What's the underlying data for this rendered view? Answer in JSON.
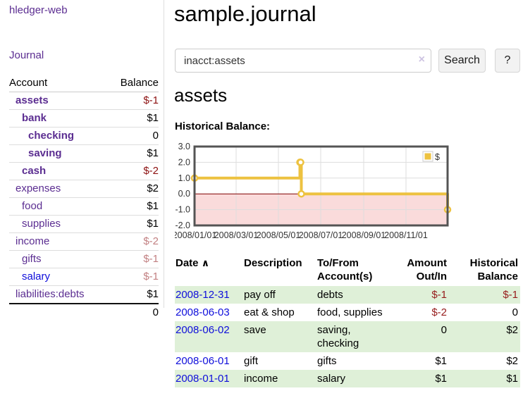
{
  "app": {
    "brand": "hledger-web",
    "nav_journal": "Journal"
  },
  "sidebar": {
    "col_account": "Account",
    "col_balance": "Balance",
    "accounts": [
      {
        "name": "assets",
        "level": 1,
        "bold": true,
        "balance": "$-1",
        "balance_class": "neg-strong",
        "unvisited": false
      },
      {
        "name": "bank",
        "level": 2,
        "bold": true,
        "balance": "$1",
        "balance_class": "",
        "unvisited": false
      },
      {
        "name": "checking",
        "level": 3,
        "bold": true,
        "balance": "0",
        "balance_class": "",
        "unvisited": false
      },
      {
        "name": "saving",
        "level": 3,
        "bold": true,
        "balance": "$1",
        "balance_class": "",
        "unvisited": false
      },
      {
        "name": "cash",
        "level": 2,
        "bold": true,
        "balance": "$-2",
        "balance_class": "neg-strong",
        "unvisited": false
      },
      {
        "name": "expenses",
        "level": 1,
        "bold": false,
        "balance": "$2",
        "balance_class": "",
        "unvisited": false
      },
      {
        "name": "food",
        "level": 2,
        "bold": false,
        "balance": "$1",
        "balance_class": "",
        "unvisited": false
      },
      {
        "name": "supplies",
        "level": 2,
        "bold": false,
        "balance": "$1",
        "balance_class": "",
        "unvisited": false
      },
      {
        "name": "income",
        "level": 1,
        "bold": false,
        "balance": "$-2",
        "balance_class": "neg-muted",
        "unvisited": false
      },
      {
        "name": "gifts",
        "level": 2,
        "bold": false,
        "balance": "$-1",
        "balance_class": "neg-muted",
        "unvisited": false
      },
      {
        "name": "salary",
        "level": 2,
        "bold": false,
        "balance": "$-1",
        "balance_class": "neg-muted",
        "unvisited": true
      },
      {
        "name": "liabilities:debts",
        "level": 1,
        "bold": false,
        "balance": "$1",
        "balance_class": "",
        "unvisited": false
      }
    ],
    "total": "0"
  },
  "header": {
    "title": "sample.journal"
  },
  "search": {
    "value": "inacct:assets",
    "clear_icon": "×",
    "button_label": "Search",
    "help_label": "?"
  },
  "account_page": {
    "heading": "assets",
    "chart_label": "Historical Balance:"
  },
  "chart_data": {
    "type": "line",
    "title": "Historical Balance",
    "step": true,
    "series_color": "#edc240",
    "negative_fill": "#fadbdb",
    "zero_line_color": "#800000",
    "grid_color": "#dddddd",
    "border_color": "#545454",
    "ylim": [
      -2,
      3
    ],
    "x_range_days": [
      0,
      365
    ],
    "y_ticks": [
      {
        "label": "3.0",
        "value": 3
      },
      {
        "label": "2.0",
        "value": 2
      },
      {
        "label": "1.0",
        "value": 1
      },
      {
        "label": "0.0",
        "value": 0
      },
      {
        "label": "-1.0",
        "value": -1
      },
      {
        "label": "-2.0",
        "value": -2
      }
    ],
    "x_ticks": [
      {
        "label": "2008/01/01",
        "day": 0
      },
      {
        "label": "2008/03/01",
        "day": 60
      },
      {
        "label": "2008/05/01",
        "day": 121
      },
      {
        "label": "2008/07/01",
        "day": 182
      },
      {
        "label": "2008/09/01",
        "day": 244
      },
      {
        "label": "2008/11/01",
        "day": 305
      }
    ],
    "legend": {
      "label": "$",
      "color": "#edc240",
      "position": "top-right"
    },
    "points": [
      {
        "date": "2008-01-01",
        "day": 0,
        "value": 1
      },
      {
        "date": "2008-06-01",
        "day": 152,
        "value": 2
      },
      {
        "date": "2008-06-02",
        "day": 153,
        "value": 2
      },
      {
        "date": "2008-06-03",
        "day": 154,
        "value": 0
      },
      {
        "date": "2008-12-31",
        "day": 365,
        "value": -1
      }
    ]
  },
  "register": {
    "sort_indicator": "∧",
    "columns": {
      "date": "Date",
      "description": "Description",
      "accounts": "To/From Account(s)",
      "amount": "Amount Out/In",
      "balance": "Historical Balance"
    },
    "rows": [
      {
        "date": "2008-12-31",
        "description": "pay off",
        "accounts": "debts",
        "amount": "$-1",
        "amount_negative": true,
        "balance": "$-1",
        "balance_negative": true
      },
      {
        "date": "2008-06-03",
        "description": "eat & shop",
        "accounts": "food, supplies",
        "amount": "$-2",
        "amount_negative": true,
        "balance": "0",
        "balance_negative": false
      },
      {
        "date": "2008-06-02",
        "description": "save",
        "accounts": "saving, checking",
        "amount": "0",
        "amount_negative": false,
        "balance": "$2",
        "balance_negative": false
      },
      {
        "date": "2008-06-01",
        "description": "gift",
        "accounts": "gifts",
        "amount": "$1",
        "amount_negative": false,
        "balance": "$2",
        "balance_negative": false
      },
      {
        "date": "2008-01-01",
        "description": "income",
        "accounts": "salary",
        "amount": "$1",
        "amount_negative": false,
        "balance": "$1",
        "balance_negative": false
      }
    ]
  }
}
